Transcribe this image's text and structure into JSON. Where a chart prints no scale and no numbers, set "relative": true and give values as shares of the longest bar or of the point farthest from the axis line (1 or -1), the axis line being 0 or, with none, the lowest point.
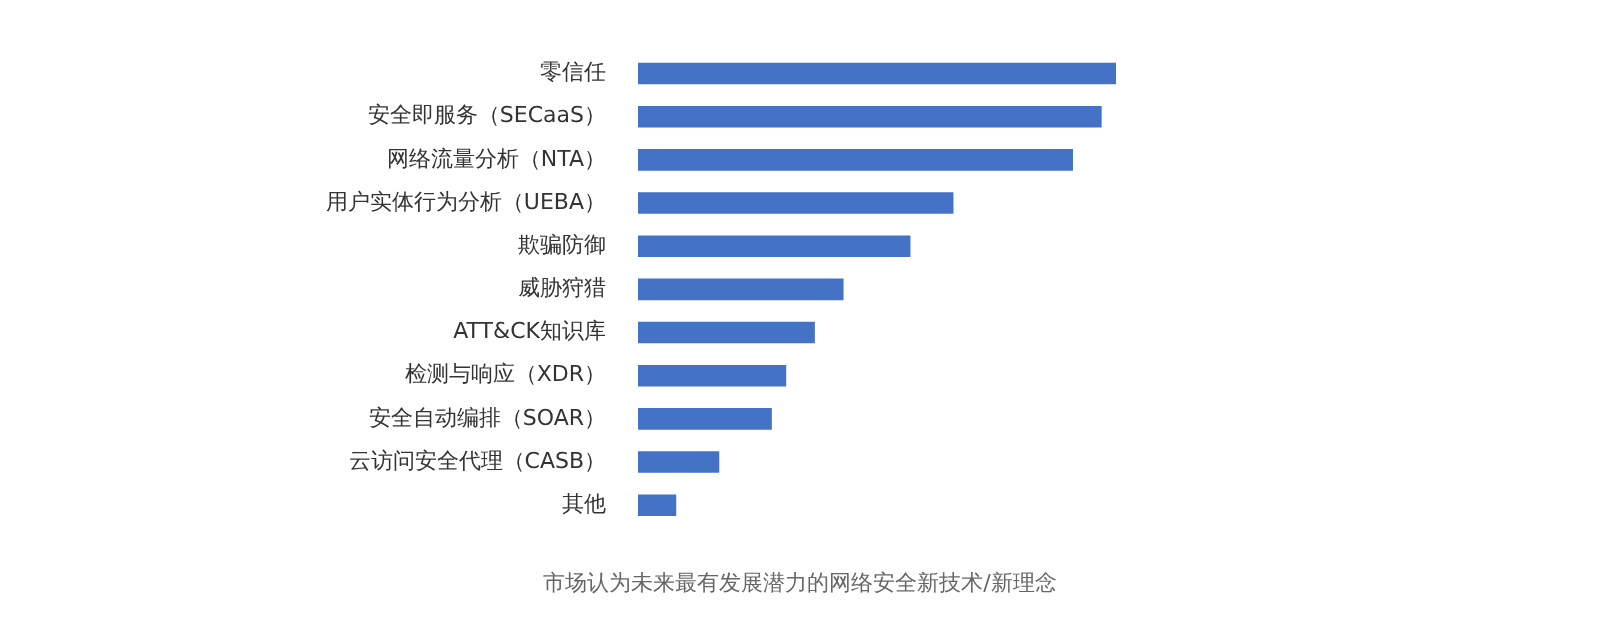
{
  "chart_data": {
    "type": "bar",
    "orientation": "horizontal",
    "relative": true,
    "categories": [
      "零信任",
      "安全即服务（SECaaS）",
      "网络流量分析（NTA）",
      "用户实体行为分析（UEBA）",
      "欺骗防御",
      "威胁狩猎",
      "ATT&CK知识库",
      "检测与响应（XDR）",
      "安全自动编排（SOAR）",
      "云访问安全代理（CASB）",
      "其他"
    ],
    "values": [
      1,
      0.97,
      0.91,
      0.66,
      0.57,
      0.43,
      0.37,
      0.31,
      0.28,
      0.17,
      0.08
    ],
    "color": "#4472c4",
    "annotations": [
      "市场认为未来最有发展潜力的网络安全新技术/新理念"
    ]
  }
}
